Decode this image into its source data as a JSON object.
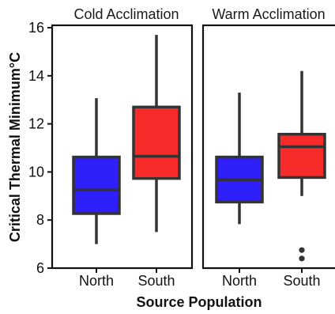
{
  "chart_data": {
    "type": "boxplot",
    "xlabel": "Source Population",
    "ylabel": "Critical Thermal Minimum°C",
    "ylim": [
      6,
      16.1
    ],
    "yticks": [
      6,
      8,
      10,
      12,
      14,
      16
    ],
    "categories": [
      "North",
      "South"
    ],
    "colors": {
      "North": "#2f1ff8",
      "South": "#f82b2b"
    },
    "panels": [
      {
        "title": "Cold Acclimation",
        "boxes": [
          {
            "category": "North",
            "whisker_low": 7.0,
            "q1": 8.27,
            "median": 9.25,
            "q3": 10.62,
            "whisker_high": 13.07,
            "outliers": []
          },
          {
            "category": "South",
            "whisker_low": 7.5,
            "q1": 9.73,
            "median": 10.65,
            "q3": 12.7,
            "whisker_high": 15.7,
            "outliers": []
          }
        ]
      },
      {
        "title": "Warm Acclimation",
        "boxes": [
          {
            "category": "North",
            "whisker_low": 7.83,
            "q1": 8.75,
            "median": 9.68,
            "q3": 10.62,
            "whisker_high": 13.3,
            "outliers": []
          },
          {
            "category": "South",
            "whisker_low": 9.0,
            "q1": 9.77,
            "median": 11.05,
            "q3": 11.57,
            "whisker_high": 14.2,
            "outliers": [
              6.4,
              6.75
            ]
          }
        ]
      }
    ]
  }
}
